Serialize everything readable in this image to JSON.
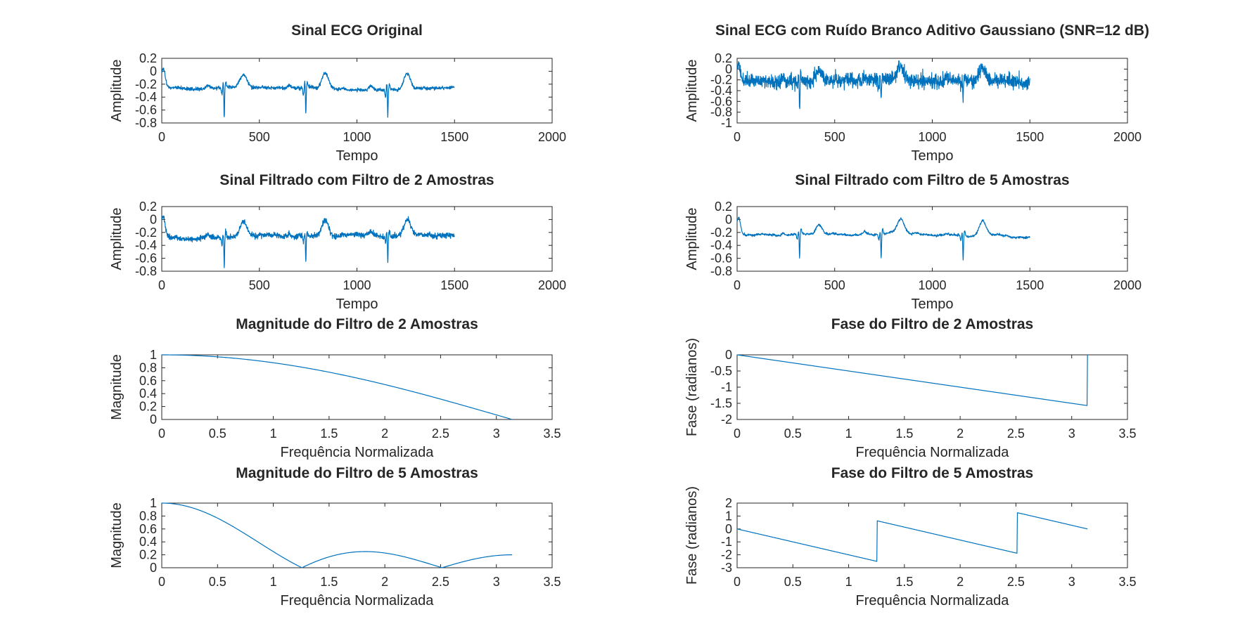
{
  "figure": {
    "background": "#ffffff",
    "line_color": "#0072bd",
    "axis_color": "#262626"
  },
  "chart_data": [
    {
      "id": "p1",
      "type": "line",
      "title": "Sinal ECG Original",
      "xlabel": "Tempo",
      "ylabel": "Amplitude",
      "xlim": [
        0,
        2000
      ],
      "ylim": [
        -0.8,
        0.2
      ],
      "xticks": [
        0,
        500,
        1000,
        1500,
        2000
      ],
      "yticks": [
        -0.8,
        -0.6,
        -0.4,
        -0.2,
        0,
        0.2
      ],
      "signal": {
        "kind": "ecg",
        "n": 1500,
        "baseline": -0.25,
        "noise": 0.012,
        "seed": 3,
        "beats": [
          {
            "r": 320,
            "q": -0.1,
            "rr": 0.1,
            "s": -0.75,
            "t": 0.2,
            "p": 0.05
          },
          {
            "r": 738,
            "q": -0.1,
            "rr": 0.1,
            "s": -0.66,
            "t": 0.25,
            "p": 0.05
          },
          {
            "r": 1158,
            "q": -0.1,
            "rr": 0.1,
            "s": -0.68,
            "t": 0.25,
            "p": 0.05
          }
        ],
        "start_bump": 0.3
      }
    },
    {
      "id": "p2",
      "type": "line",
      "title": "Sinal ECG com Ruído Branco Aditivo Gaussiano (SNR=12 dB)",
      "xlabel": "Tempo",
      "ylabel": "Amplitude",
      "xlim": [
        0,
        2000
      ],
      "ylim": [
        -1,
        0.2
      ],
      "xticks": [
        0,
        500,
        1000,
        1500,
        2000
      ],
      "yticks": [
        -1,
        -0.8,
        -0.6,
        -0.4,
        -0.2,
        0,
        0.2
      ],
      "signal": {
        "kind": "ecg",
        "n": 1500,
        "baseline": -0.22,
        "noise": 0.065,
        "seed": 11,
        "beats": [
          {
            "r": 320,
            "q": -0.1,
            "rr": 0.1,
            "s": -0.78,
            "t": 0.2,
            "p": 0.05
          },
          {
            "r": 738,
            "q": -0.1,
            "rr": 0.1,
            "s": -0.6,
            "t": 0.25,
            "p": 0.05
          },
          {
            "r": 1158,
            "q": -0.1,
            "rr": 0.1,
            "s": -0.6,
            "t": 0.25,
            "p": 0.05
          }
        ],
        "start_bump": 0.3
      }
    },
    {
      "id": "p3",
      "type": "line",
      "title": "Sinal Filtrado com Filtro de 2 Amostras",
      "xlabel": "Tempo",
      "ylabel": "Amplitude",
      "xlim": [
        0,
        2000
      ],
      "ylim": [
        -0.8,
        0.2
      ],
      "xticks": [
        0,
        500,
        1000,
        1500,
        2000
      ],
      "yticks": [
        -0.8,
        -0.6,
        -0.4,
        -0.2,
        0,
        0.2
      ],
      "signal": {
        "kind": "ecg",
        "n": 1500,
        "baseline": -0.25,
        "noise": 0.02,
        "seed": 5,
        "beats": [
          {
            "r": 320,
            "q": -0.1,
            "rr": 0.08,
            "s": -0.72,
            "t": 0.2,
            "p": 0.05
          },
          {
            "r": 738,
            "q": -0.1,
            "rr": 0.08,
            "s": -0.64,
            "t": 0.25,
            "p": 0.05
          },
          {
            "r": 1158,
            "q": -0.1,
            "rr": 0.08,
            "s": -0.66,
            "t": 0.25,
            "p": 0.05
          }
        ],
        "start_bump": 0.3
      }
    },
    {
      "id": "p4",
      "type": "line",
      "title": "Sinal Filtrado com Filtro de 5 Amostras",
      "xlabel": "Tempo",
      "ylabel": "Amplitude",
      "xlim": [
        0,
        2000
      ],
      "ylim": [
        -0.8,
        0.2
      ],
      "xticks": [
        0,
        500,
        1000,
        1500,
        2000
      ],
      "yticks": [
        -0.8,
        -0.6,
        -0.4,
        -0.2,
        0,
        0.2
      ],
      "signal": {
        "kind": "ecg",
        "n": 1500,
        "baseline": -0.25,
        "noise": 0.008,
        "seed": 9,
        "beats": [
          {
            "r": 320,
            "q": -0.08,
            "rr": 0.05,
            "s": -0.62,
            "t": 0.18,
            "p": 0.04
          },
          {
            "r": 738,
            "q": -0.08,
            "rr": 0.05,
            "s": -0.6,
            "t": 0.22,
            "p": 0.04
          },
          {
            "r": 1158,
            "q": -0.08,
            "rr": 0.05,
            "s": -0.62,
            "t": 0.22,
            "p": 0.04
          }
        ],
        "start_bump": 0.28
      }
    },
    {
      "id": "p5",
      "type": "line",
      "title": "Magnitude do Filtro de 2 Amostras",
      "xlabel": "Frequência Normalizada",
      "ylabel": "Magnitude",
      "xlim": [
        0,
        3.5
      ],
      "ylim": [
        0,
        1
      ],
      "xticks": [
        0,
        0.5,
        1,
        1.5,
        2,
        2.5,
        3,
        3.5
      ],
      "yticks": [
        0,
        0.2,
        0.4,
        0.6,
        0.8,
        1
      ],
      "signal": {
        "kind": "mag",
        "M": 2,
        "wmax": 3.1416
      }
    },
    {
      "id": "p6",
      "type": "line",
      "title": "Fase do Filtro de 2 Amostras",
      "xlabel": "Frequência Normalizada",
      "ylabel": "Fase (radianos)",
      "xlim": [
        0,
        3.5
      ],
      "ylim": [
        -2,
        0
      ],
      "xticks": [
        0,
        0.5,
        1,
        1.5,
        2,
        2.5,
        3,
        3.5
      ],
      "yticks": [
        -2,
        -1.5,
        -1,
        -0.5,
        0
      ],
      "signal": {
        "kind": "phase",
        "M": 2,
        "wmax": 3.1416
      }
    },
    {
      "id": "p7",
      "type": "line",
      "title": "Magnitude do Filtro de 5 Amostras",
      "xlabel": "Frequência Normalizada",
      "ylabel": "Magnitude",
      "xlim": [
        0,
        3.5
      ],
      "ylim": [
        0,
        1
      ],
      "xticks": [
        0,
        0.5,
        1,
        1.5,
        2,
        2.5,
        3,
        3.5
      ],
      "yticks": [
        0,
        0.2,
        0.4,
        0.6,
        0.8,
        1
      ],
      "signal": {
        "kind": "mag",
        "M": 5,
        "wmax": 3.1416
      }
    },
    {
      "id": "p8",
      "type": "line",
      "title": "Fase do Filtro de 5 Amostras",
      "xlabel": "Frequência Normalizada",
      "ylabel": "Fase (radianos)",
      "xlim": [
        0,
        3.5
      ],
      "ylim": [
        -3,
        2
      ],
      "xticks": [
        0,
        0.5,
        1,
        1.5,
        2,
        2.5,
        3,
        3.5
      ],
      "yticks": [
        -3,
        -2,
        -1,
        0,
        1,
        2
      ],
      "signal": {
        "kind": "phase",
        "M": 5,
        "wmax": 3.1416
      }
    }
  ]
}
